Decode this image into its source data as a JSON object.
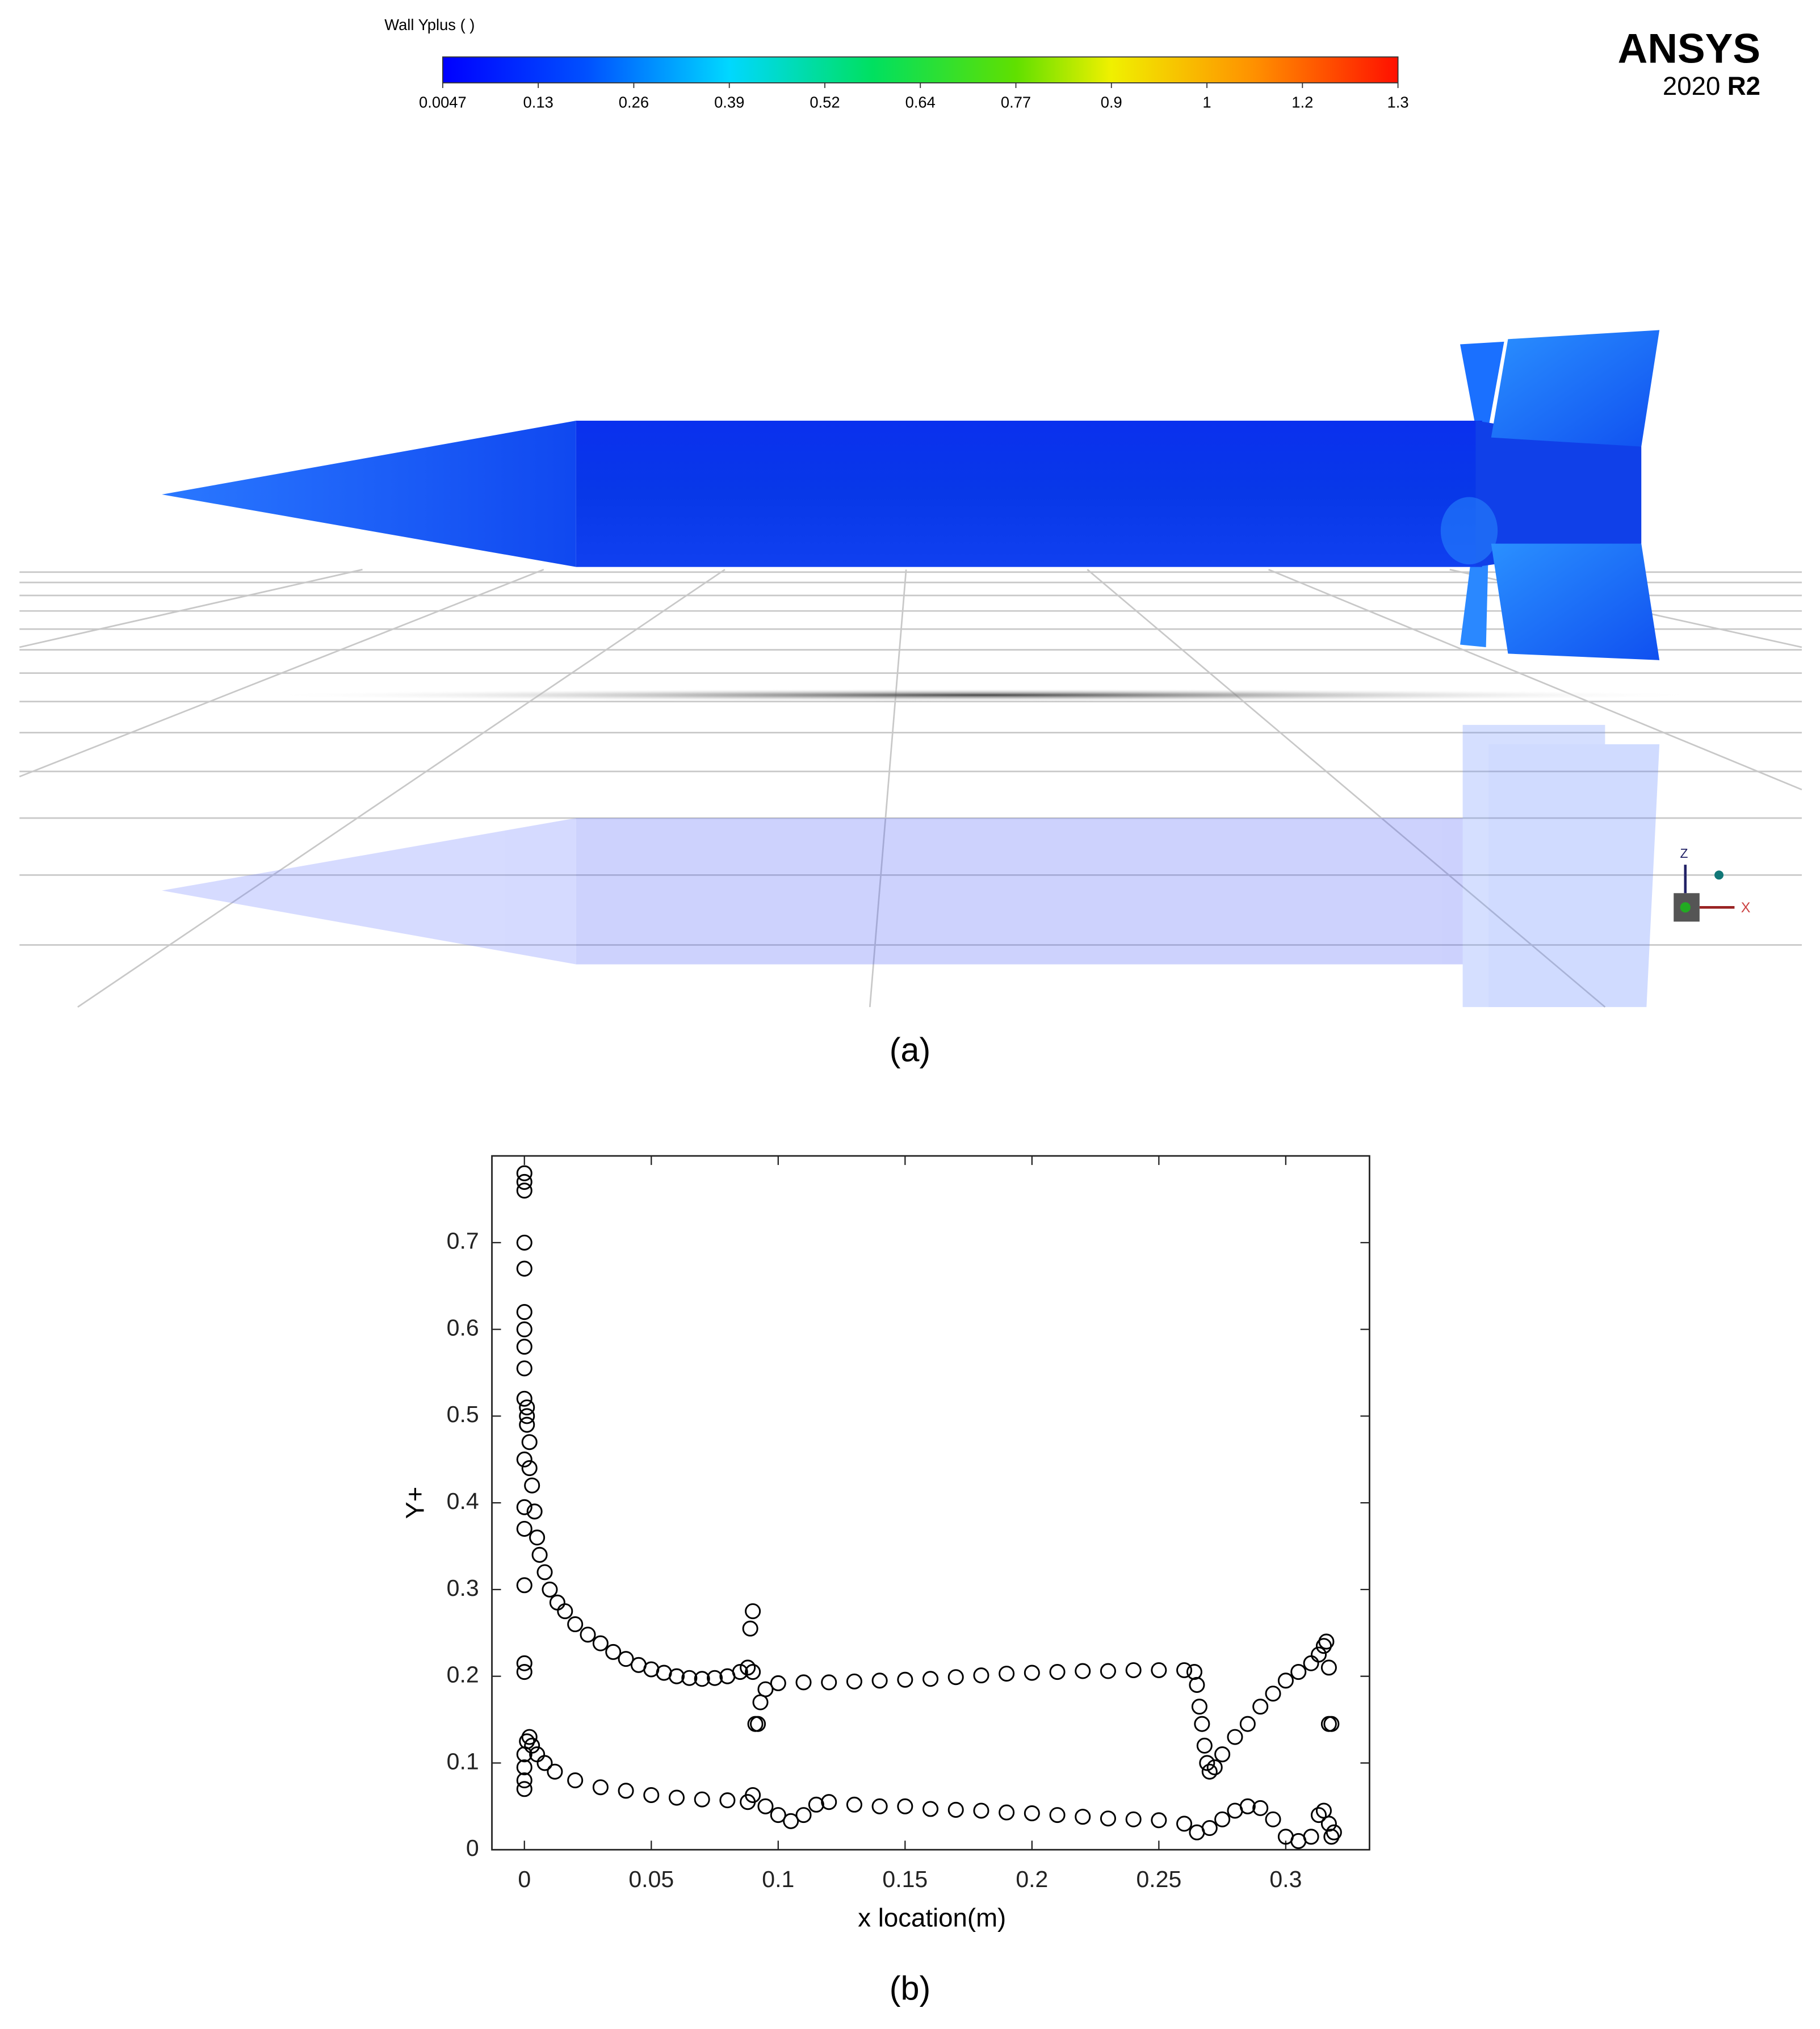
{
  "panel_a": {
    "colorbar": {
      "title": "Wall Yplus ( )",
      "tick_labels": [
        "0.0047",
        "0.13",
        "0.26",
        "0.39",
        "0.52",
        "0.64",
        "0.77",
        "0.9",
        "1",
        "1.2",
        "1.3"
      ]
    },
    "logo": {
      "brand": "ANSYS",
      "version": "2020",
      "release": "R2"
    },
    "axis_labels": {
      "z": "Z",
      "x": "X"
    },
    "caption": "(a)"
  },
  "chart_data": {
    "type": "scatter",
    "xlabel": "x location(m)",
    "ylabel": "Y+",
    "caption": "(b)",
    "xlim": [
      -0.0128,
      0.333
    ],
    "ylim": [
      0,
      0.8
    ],
    "xticks": [
      0,
      0.05,
      0.1,
      0.15,
      0.2,
      0.25,
      0.3
    ],
    "yticks": [
      0,
      0.1,
      0.2,
      0.3,
      0.4,
      0.5,
      0.6,
      0.7
    ],
    "color": "#000000",
    "x": [
      0,
      0,
      0,
      0,
      0,
      0,
      0,
      0,
      0,
      0,
      0.001,
      0.001,
      0.001,
      0.002,
      0,
      0.002,
      0,
      0,
      0,
      0,
      0,
      0.003,
      0.004,
      0.005,
      0.006,
      0.008,
      0.01,
      0.013,
      0.016,
      0.02,
      0.025,
      0.03,
      0.035,
      0.04,
      0.045,
      0.05,
      0.055,
      0.06,
      0.065,
      0.07,
      0.075,
      0.08,
      0.085,
      0.088,
      0.089,
      0.09,
      0.09,
      0.091,
      0.092,
      0.093,
      0.095,
      0.1,
      0.11,
      0.12,
      0.13,
      0.14,
      0.15,
      0.16,
      0.17,
      0.18,
      0.19,
      0.2,
      0.21,
      0.22,
      0.23,
      0.24,
      0.25,
      0.26,
      0.264,
      0.265,
      0.266,
      0.267,
      0.268,
      0.269,
      0.27,
      0.272,
      0.275,
      0.28,
      0.285,
      0.29,
      0.295,
      0.3,
      0.305,
      0.31,
      0.313,
      0.315,
      0.316,
      0.317,
      0.317,
      0.318,
      0,
      0,
      0,
      0,
      0.001,
      0.002,
      0.003,
      0.005,
      0.008,
      0.012,
      0.02,
      0.03,
      0.04,
      0.05,
      0.06,
      0.07,
      0.08,
      0.088,
      0.09,
      0.095,
      0.1,
      0.105,
      0.11,
      0.115,
      0.12,
      0.13,
      0.14,
      0.15,
      0.16,
      0.17,
      0.18,
      0.19,
      0.2,
      0.21,
      0.22,
      0.23,
      0.24,
      0.25,
      0.26,
      0.265,
      0.27,
      0.275,
      0.28,
      0.285,
      0.29,
      0.295,
      0.3,
      0.305,
      0.31,
      0.313,
      0.315,
      0.317,
      0.318,
      0.319
    ],
    "values": [
      0.78,
      0.77,
      0.76,
      0.7,
      0.67,
      0.62,
      0.6,
      0.58,
      0.555,
      0.52,
      0.51,
      0.5,
      0.49,
      0.47,
      0.45,
      0.44,
      0.395,
      0.37,
      0.305,
      0.215,
      0.205,
      0.42,
      0.39,
      0.36,
      0.34,
      0.32,
      0.3,
      0.285,
      0.275,
      0.26,
      0.248,
      0.238,
      0.228,
      0.22,
      0.213,
      0.208,
      0.204,
      0.2,
      0.198,
      0.197,
      0.198,
      0.2,
      0.205,
      0.21,
      0.255,
      0.275,
      0.205,
      0.145,
      0.145,
      0.17,
      0.185,
      0.192,
      0.193,
      0.193,
      0.194,
      0.195,
      0.196,
      0.197,
      0.199,
      0.201,
      0.203,
      0.204,
      0.205,
      0.206,
      0.206,
      0.207,
      0.207,
      0.207,
      0.205,
      0.19,
      0.165,
      0.145,
      0.12,
      0.1,
      0.09,
      0.095,
      0.11,
      0.13,
      0.145,
      0.165,
      0.18,
      0.195,
      0.205,
      0.215,
      0.225,
      0.235,
      0.24,
      0.21,
      0.145,
      0.145,
      0.07,
      0.08,
      0.095,
      0.11,
      0.125,
      0.13,
      0.12,
      0.11,
      0.1,
      0.09,
      0.08,
      0.072,
      0.068,
      0.063,
      0.06,
      0.058,
      0.057,
      0.055,
      0.063,
      0.05,
      0.04,
      0.033,
      0.04,
      0.052,
      0.055,
      0.052,
      0.05,
      0.05,
      0.047,
      0.046,
      0.045,
      0.043,
      0.042,
      0.04,
      0.038,
      0.036,
      0.035,
      0.034,
      0.03,
      0.02,
      0.025,
      0.035,
      0.045,
      0.05,
      0.048,
      0.035,
      0.015,
      0.01,
      0.015,
      0.04,
      0.045,
      0.03,
      0.015,
      0.02
    ]
  }
}
